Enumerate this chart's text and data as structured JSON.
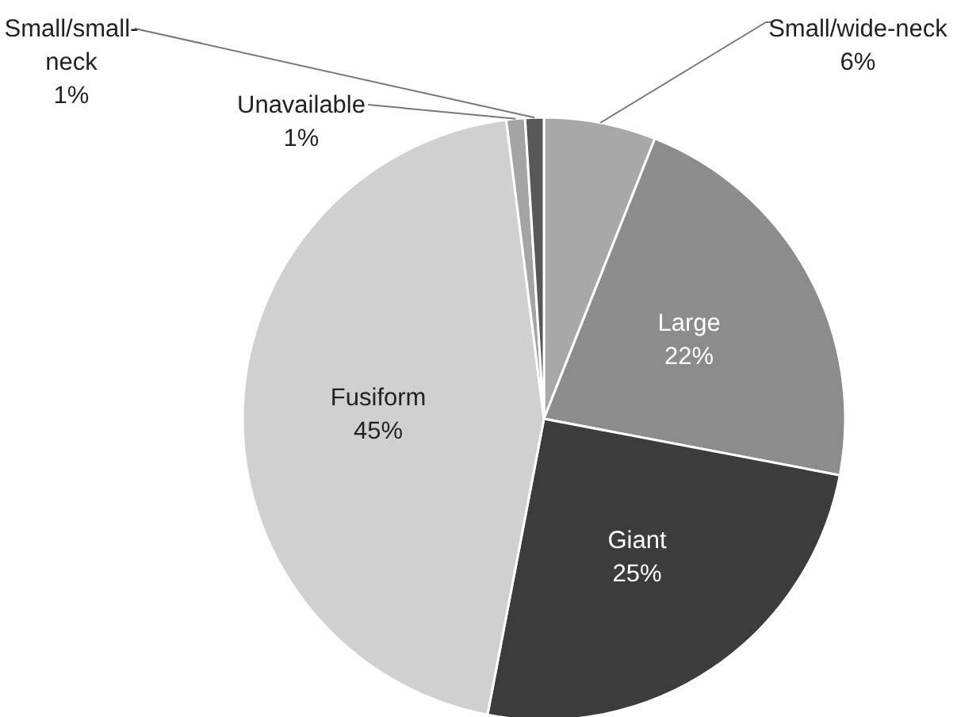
{
  "chart_data": {
    "type": "pie",
    "categories": [
      "Small/wide-neck",
      "Large",
      "Giant",
      "Fusiform",
      "Unavailable",
      "Small/small-neck"
    ],
    "values": [
      6,
      22,
      25,
      45,
      1,
      1
    ],
    "value_labels": [
      "6%",
      "22%",
      "25%",
      "45%",
      "1%",
      "1%"
    ],
    "colors": [
      "#a8a8a8",
      "#8c8c8c",
      "#3c3c3c",
      "#d0d0d0",
      "#a4a4a4",
      "#585858"
    ]
  }
}
